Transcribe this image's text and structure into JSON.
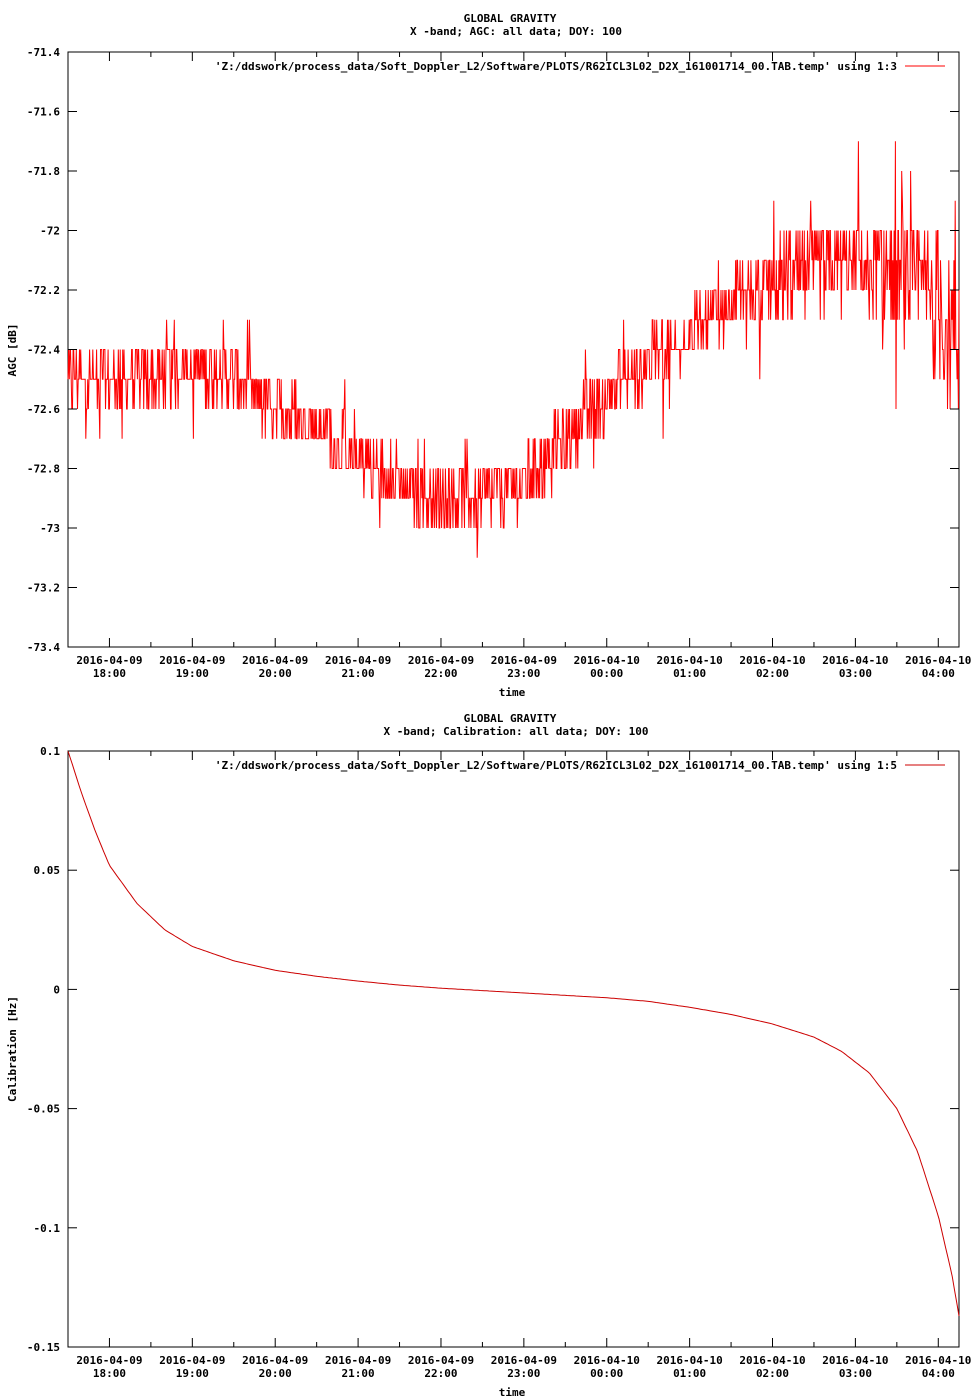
{
  "chart_data": [
    {
      "type": "line",
      "title": "GLOBAL GRAVITY",
      "subtitle": "X -band; AGC: all data; DOY: 100",
      "xlabel": "time",
      "ylabel": "AGC [dB]",
      "ylim": [
        -73.4,
        -71.4
      ],
      "xlim": [
        "2016-04-09 17:30",
        "2016-04-10 04:15"
      ],
      "grid": false,
      "legend_position": "top-right",
      "y_ticks": [
        {
          "value": -71.4,
          "label": "-71.4"
        },
        {
          "value": -71.6,
          "label": "-71.6"
        },
        {
          "value": -71.8,
          "label": "-71.8"
        },
        {
          "value": -72.0,
          "label": "-72"
        },
        {
          "value": -72.2,
          "label": "-72.2"
        },
        {
          "value": -72.4,
          "label": "-72.4"
        },
        {
          "value": -72.6,
          "label": "-72.6"
        },
        {
          "value": -72.8,
          "label": "-72.8"
        },
        {
          "value": -73.0,
          "label": "-73"
        },
        {
          "value": -73.2,
          "label": "-73.2"
        },
        {
          "value": -73.4,
          "label": "-73.4"
        }
      ],
      "x_ticks": [
        {
          "value": "2016-04-09 18:00",
          "date": "2016-04-09",
          "time": "18:00"
        },
        {
          "value": "2016-04-09 19:00",
          "date": "2016-04-09",
          "time": "19:00"
        },
        {
          "value": "2016-04-09 20:00",
          "date": "2016-04-09",
          "time": "20:00"
        },
        {
          "value": "2016-04-09 21:00",
          "date": "2016-04-09",
          "time": "21:00"
        },
        {
          "value": "2016-04-09 22:00",
          "date": "2016-04-09",
          "time": "22:00"
        },
        {
          "value": "2016-04-09 23:00",
          "date": "2016-04-09",
          "time": "23:00"
        },
        {
          "value": "2016-04-10 00:00",
          "date": "2016-04-10",
          "time": "00:00"
        },
        {
          "value": "2016-04-10 01:00",
          "date": "2016-04-10",
          "time": "01:00"
        },
        {
          "value": "2016-04-10 02:00",
          "date": "2016-04-10",
          "time": "02:00"
        },
        {
          "value": "2016-04-10 03:00",
          "date": "2016-04-10",
          "time": "03:00"
        },
        {
          "value": "2016-04-10 04:00",
          "date": "2016-04-10",
          "time": "04:00"
        }
      ],
      "series": [
        {
          "name": "'Z:/ddswork/process_data/Soft_Doppler_L2/Software/PLOTS/R62ICL3L02_D2X_161001714_00.TAB.temp' using 1:3",
          "color": "#ff0000",
          "style": "noisy-quantized",
          "quantization_step": 0.1,
          "x": [
            "2016-04-09 17:30",
            "2016-04-09 18:00",
            "2016-04-09 18:30",
            "2016-04-09 19:00",
            "2016-04-09 19:30",
            "2016-04-09 20:00",
            "2016-04-09 20:30",
            "2016-04-09 21:00",
            "2016-04-09 21:30",
            "2016-04-09 22:00",
            "2016-04-09 22:30",
            "2016-04-09 23:00",
            "2016-04-09 23:30",
            "2016-04-10 00:00",
            "2016-04-10 00:30",
            "2016-04-10 01:00",
            "2016-04-10 01:30",
            "2016-04-10 02:00",
            "2016-04-10 02:30",
            "2016-04-10 03:00",
            "2016-04-10 03:30",
            "2016-04-10 04:00",
            "2016-04-10 04:15"
          ],
          "values": [
            -72.5,
            -72.5,
            -72.5,
            -72.45,
            -72.5,
            -72.6,
            -72.65,
            -72.75,
            -72.85,
            -72.9,
            -72.9,
            -72.85,
            -72.7,
            -72.55,
            -72.45,
            -72.35,
            -72.25,
            -72.2,
            -72.15,
            -72.1,
            -72.15,
            -72.25,
            -72.4
          ],
          "noise_band": [
            0.1,
            0.1,
            0.1,
            0.1,
            0.1,
            0.1,
            0.1,
            0.1,
            0.1,
            0.1,
            0.1,
            0.1,
            0.1,
            0.1,
            0.1,
            0.1,
            0.1,
            0.15,
            0.15,
            0.15,
            0.2,
            0.25,
            0.25
          ]
        }
      ]
    },
    {
      "type": "line",
      "title": "GLOBAL GRAVITY",
      "subtitle": "X -band; Calibration: all data; DOY: 100",
      "xlabel": "time",
      "ylabel": "Calibration [Hz]",
      "ylim": [
        -0.15,
        0.1
      ],
      "xlim": [
        "2016-04-09 17:30",
        "2016-04-10 04:15"
      ],
      "grid": false,
      "legend_position": "top-right",
      "y_ticks": [
        {
          "value": 0.1,
          "label": "0.1"
        },
        {
          "value": 0.05,
          "label": "0.05"
        },
        {
          "value": 0.0,
          "label": "0"
        },
        {
          "value": -0.05,
          "label": "-0.05"
        },
        {
          "value": -0.1,
          "label": "-0.1"
        },
        {
          "value": -0.15,
          "label": "-0.15"
        }
      ],
      "x_ticks": [
        {
          "value": "2016-04-09 18:00",
          "date": "2016-04-09",
          "time": "18:00"
        },
        {
          "value": "2016-04-09 19:00",
          "date": "2016-04-09",
          "time": "19:00"
        },
        {
          "value": "2016-04-09 20:00",
          "date": "2016-04-09",
          "time": "20:00"
        },
        {
          "value": "2016-04-09 21:00",
          "date": "2016-04-09",
          "time": "21:00"
        },
        {
          "value": "2016-04-09 22:00",
          "date": "2016-04-09",
          "time": "22:00"
        },
        {
          "value": "2016-04-09 23:00",
          "date": "2016-04-09",
          "time": "23:00"
        },
        {
          "value": "2016-04-10 00:00",
          "date": "2016-04-10",
          "time": "00:00"
        },
        {
          "value": "2016-04-10 01:00",
          "date": "2016-04-10",
          "time": "01:00"
        },
        {
          "value": "2016-04-10 02:00",
          "date": "2016-04-10",
          "time": "02:00"
        },
        {
          "value": "2016-04-10 03:00",
          "date": "2016-04-10",
          "time": "03:00"
        },
        {
          "value": "2016-04-10 04:00",
          "date": "2016-04-10",
          "time": "04:00"
        }
      ],
      "series": [
        {
          "name": "'Z:/ddswork/process_data/Soft_Doppler_L2/Software/PLOTS/R62ICL3L02_D2X_161001714_00.TAB.temp' using 1:5",
          "color": "#cc0000",
          "style": "smooth",
          "x": [
            "2016-04-09 17:30",
            "2016-04-09 17:40",
            "2016-04-09 17:50",
            "2016-04-09 18:00",
            "2016-04-09 18:20",
            "2016-04-09 18:40",
            "2016-04-09 19:00",
            "2016-04-09 19:30",
            "2016-04-09 20:00",
            "2016-04-09 20:30",
            "2016-04-09 21:00",
            "2016-04-09 21:30",
            "2016-04-09 22:00",
            "2016-04-09 22:30",
            "2016-04-09 23:00",
            "2016-04-09 23:30",
            "2016-04-10 00:00",
            "2016-04-10 00:30",
            "2016-04-10 01:00",
            "2016-04-10 01:30",
            "2016-04-10 02:00",
            "2016-04-10 02:30",
            "2016-04-10 02:50",
            "2016-04-10 03:10",
            "2016-04-10 03:30",
            "2016-04-10 03:45",
            "2016-04-10 04:00",
            "2016-04-10 04:10",
            "2016-04-10 04:15"
          ],
          "values": [
            0.1,
            0.082,
            0.066,
            0.052,
            0.036,
            0.025,
            0.018,
            0.012,
            0.008,
            0.0055,
            0.0035,
            0.0018,
            0.0005,
            -0.0005,
            -0.0015,
            -0.0025,
            -0.0035,
            -0.005,
            -0.0075,
            -0.0105,
            -0.0145,
            -0.02,
            -0.026,
            -0.035,
            -0.05,
            -0.068,
            -0.095,
            -0.12,
            -0.137
          ]
        }
      ]
    }
  ]
}
